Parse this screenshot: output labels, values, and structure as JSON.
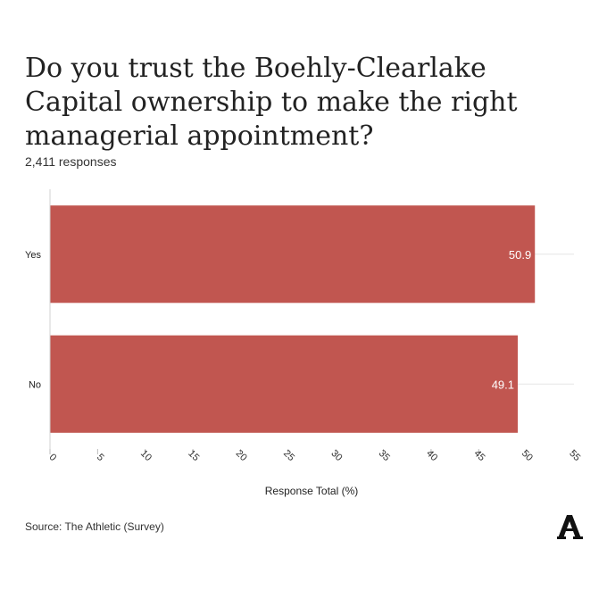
{
  "title": "Do you trust the Boehly-Clearlake Capital ownership to make the right managerial appointment?",
  "subtitle": "2,411 responses",
  "source": "Source: The Athletic (Survey)",
  "logo": {
    "icon": "the-athletic-logo",
    "letter": "A"
  },
  "colors": {
    "bar": "#c15650",
    "grid": "#e6e6e6",
    "axis": "#d0d0d0",
    "text": "#333333"
  },
  "chart_data": {
    "type": "bar",
    "orientation": "horizontal",
    "categories": [
      "Yes",
      "No"
    ],
    "values": [
      50.9,
      49.1
    ],
    "value_labels": [
      "50.9",
      "49.1"
    ],
    "xlabel": "Response Total (%)",
    "ylabel": "",
    "xlim": [
      0,
      55
    ],
    "xticks": [
      0,
      5,
      10,
      15,
      20,
      25,
      30,
      35,
      40,
      45,
      50,
      55
    ],
    "grid": true
  }
}
